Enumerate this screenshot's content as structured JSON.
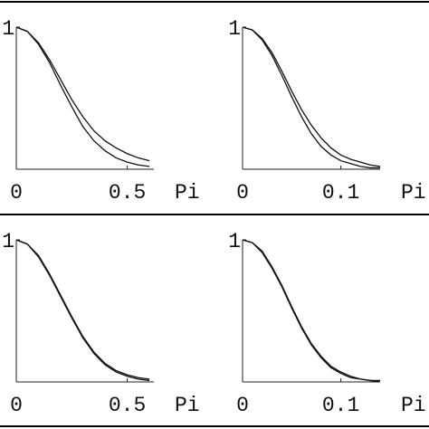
{
  "chart_data": [
    {
      "type": "line",
      "x_label": "Pi",
      "xlim": [
        0,
        0.62
      ],
      "xticks": [
        0,
        0.5
      ],
      "ylim": [
        0,
        1
      ],
      "yticks": [
        1
      ],
      "x": [
        0,
        0.05,
        0.1,
        0.15,
        0.2,
        0.25,
        0.3,
        0.35,
        0.4,
        0.45,
        0.5,
        0.55,
        0.6
      ],
      "series": [
        {
          "color": "#111111",
          "values": [
            1,
            0.97,
            0.89,
            0.77,
            0.63,
            0.49,
            0.37,
            0.27,
            0.2,
            0.15,
            0.11,
            0.08,
            0.06
          ]
        },
        {
          "color": "#111111",
          "values": [
            1,
            0.97,
            0.88,
            0.75,
            0.59,
            0.44,
            0.3,
            0.2,
            0.13,
            0.08,
            0.05,
            0.03,
            0.02
          ]
        }
      ]
    },
    {
      "type": "line",
      "x_label": "Pi",
      "xlim": [
        0,
        0.14
      ],
      "xticks": [
        0,
        0.1
      ],
      "ylim": [
        0,
        1
      ],
      "yticks": [
        1
      ],
      "x": [
        0,
        0.01,
        0.02,
        0.03,
        0.04,
        0.05,
        0.06,
        0.07,
        0.08,
        0.09,
        0.1,
        0.11,
        0.12,
        0.13,
        0.14
      ],
      "series": [
        {
          "color": "#111111",
          "values": [
            1,
            0.98,
            0.92,
            0.82,
            0.69,
            0.55,
            0.42,
            0.31,
            0.22,
            0.15,
            0.1,
            0.07,
            0.05,
            0.03,
            0.02
          ]
        },
        {
          "color": "#111111",
          "values": [
            1,
            0.98,
            0.91,
            0.8,
            0.66,
            0.51,
            0.37,
            0.25,
            0.16,
            0.1,
            0.06,
            0.04,
            0.02,
            0.01,
            0.01
          ]
        }
      ]
    },
    {
      "type": "line",
      "x_label": "Pi",
      "xlim": [
        0,
        0.62
      ],
      "xticks": [
        0,
        0.5
      ],
      "ylim": [
        0,
        1
      ],
      "yticks": [
        1
      ],
      "x": [
        0,
        0.05,
        0.1,
        0.15,
        0.2,
        0.25,
        0.3,
        0.35,
        0.4,
        0.45,
        0.5,
        0.55,
        0.6
      ],
      "series": [
        {
          "color": "#111111",
          "values": [
            1,
            0.97,
            0.89,
            0.76,
            0.61,
            0.46,
            0.32,
            0.21,
            0.13,
            0.08,
            0.05,
            0.03,
            0.02
          ]
        },
        {
          "color": "#111111",
          "values": [
            1,
            0.97,
            0.88,
            0.75,
            0.6,
            0.45,
            0.31,
            0.2,
            0.12,
            0.07,
            0.04,
            0.02,
            0.01
          ]
        }
      ]
    },
    {
      "type": "line",
      "x_label": "Pi",
      "xlim": [
        0,
        0.14
      ],
      "xticks": [
        0,
        0.1
      ],
      "ylim": [
        0,
        1
      ],
      "yticks": [
        1
      ],
      "x": [
        0,
        0.01,
        0.02,
        0.03,
        0.04,
        0.05,
        0.06,
        0.07,
        0.08,
        0.09,
        0.1,
        0.11,
        0.12,
        0.13,
        0.14
      ],
      "series": [
        {
          "color": "#111111",
          "values": [
            1,
            0.98,
            0.92,
            0.81,
            0.68,
            0.53,
            0.39,
            0.27,
            0.18,
            0.11,
            0.07,
            0.04,
            0.02,
            0.01,
            0.01
          ]
        },
        {
          "color": "#111111",
          "values": [
            1,
            0.98,
            0.91,
            0.8,
            0.67,
            0.52,
            0.38,
            0.26,
            0.17,
            0.1,
            0.06,
            0.03,
            0.02,
            0.01,
            0
          ]
        }
      ]
    }
  ]
}
